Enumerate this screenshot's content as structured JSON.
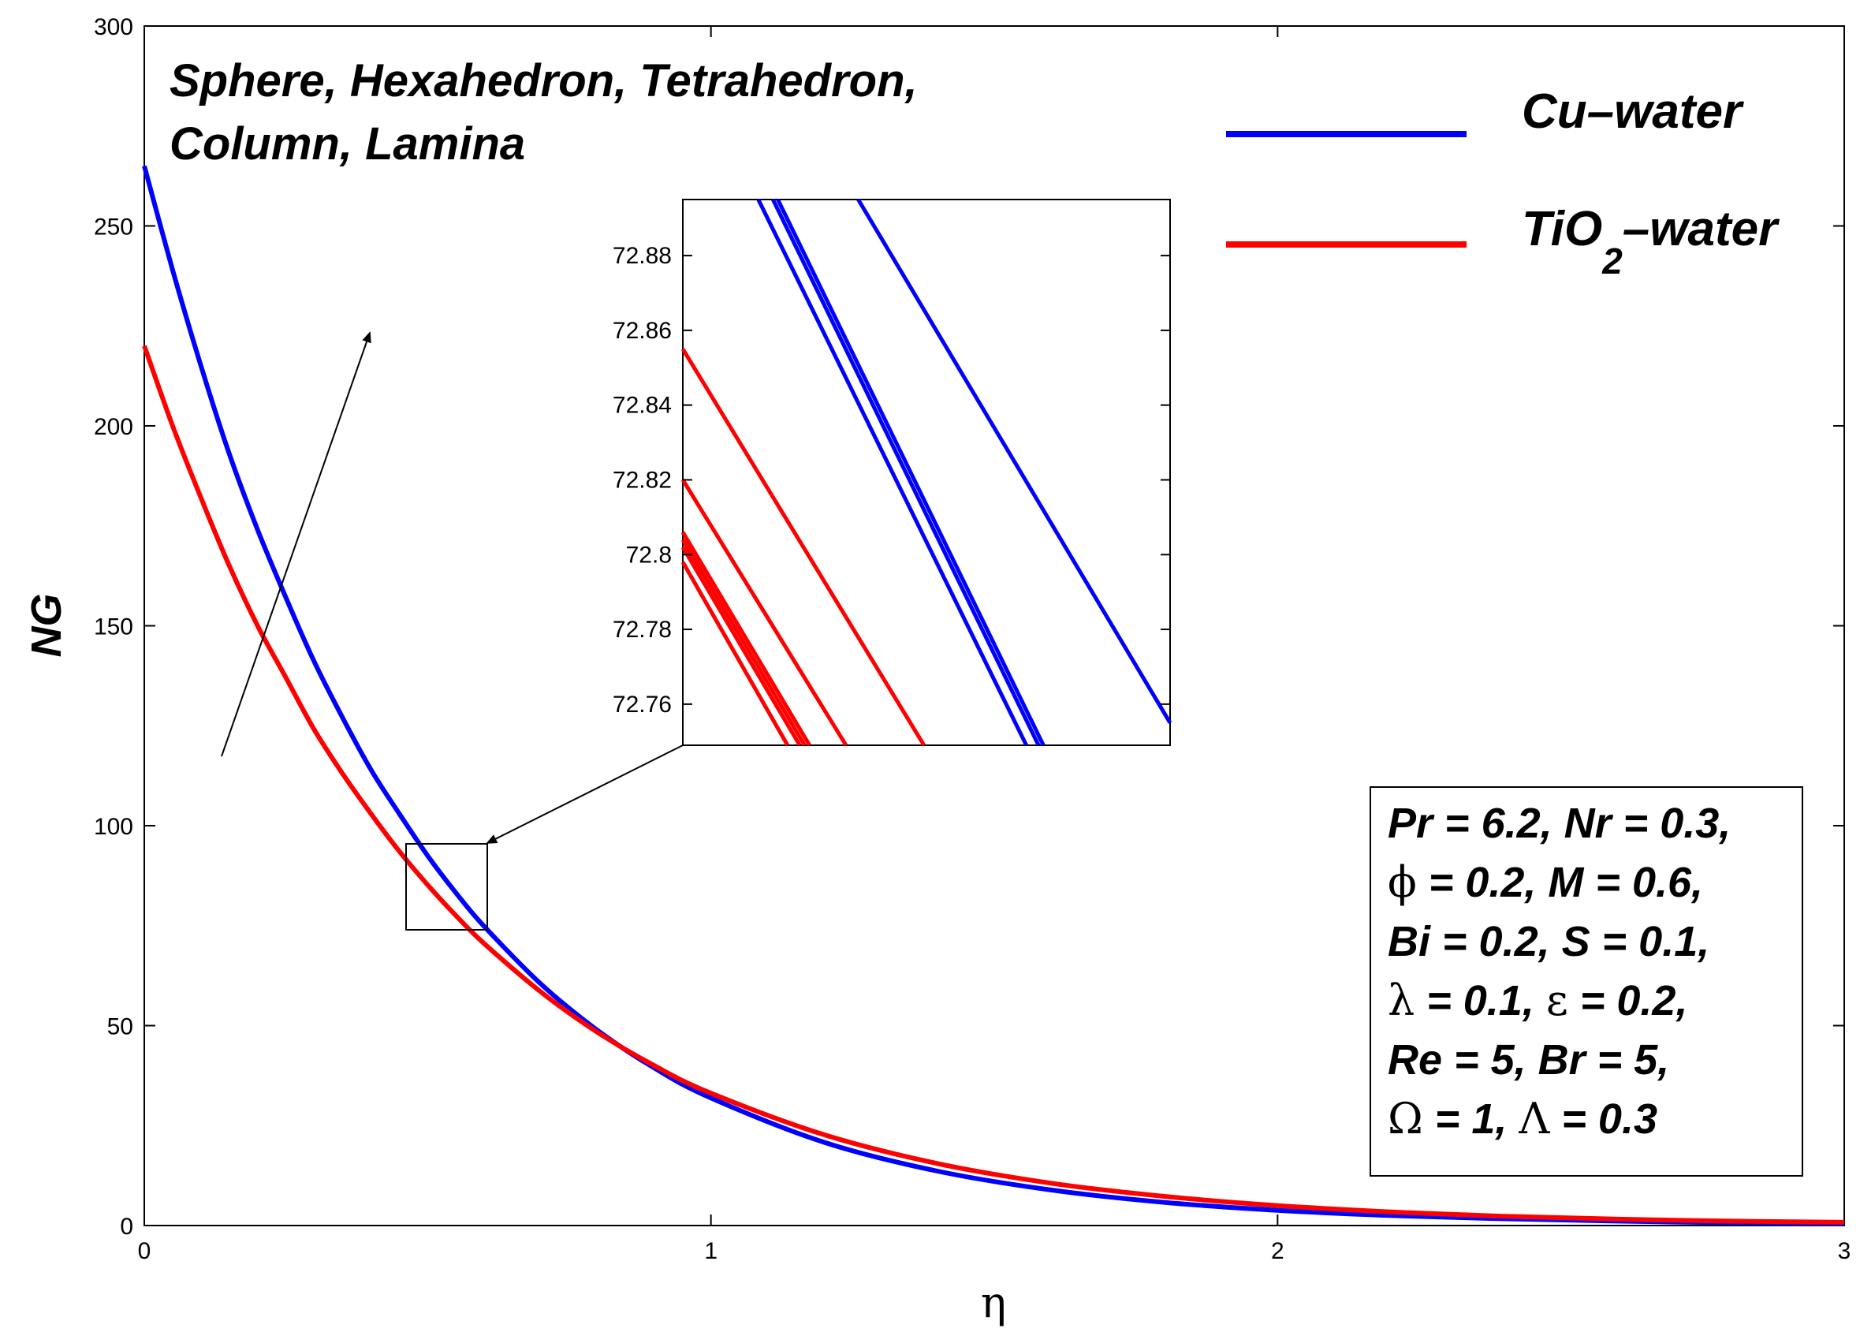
{
  "chart_data": {
    "type": "line",
    "title": "",
    "xlabel": "η",
    "ylabel": "NG",
    "xlim": [
      0,
      3
    ],
    "ylim": [
      0,
      300
    ],
    "xticks": [
      0,
      1,
      2,
      3
    ],
    "yticks": [
      0,
      50,
      100,
      150,
      200,
      250,
      300
    ],
    "grid": false,
    "legend_position": "top-right",
    "series": [
      {
        "name": "Cu–water",
        "color": "#0000ff",
        "x": [
          0,
          0.05,
          0.1,
          0.15,
          0.2,
          0.25,
          0.3,
          0.35,
          0.4,
          0.45,
          0.5,
          0.55,
          0.6,
          0.7,
          0.8,
          0.9,
          1.0,
          1.2,
          1.4,
          1.6,
          1.8,
          2.0,
          2.2,
          2.4,
          2.6,
          2.8,
          3.0
        ],
        "values": [
          265,
          239,
          215,
          193,
          174,
          157,
          141,
          127,
          114,
          103,
          92.5,
          83.2,
          74.8,
          60.4,
          48.8,
          39.4,
          31.9,
          20.8,
          13.6,
          8.9,
          5.8,
          3.8,
          2.5,
          1.7,
          1.1,
          0.7,
          0.5
        ]
      },
      {
        "name": "TiO2–water",
        "color": "#ff0000",
        "x": [
          0,
          0.05,
          0.1,
          0.15,
          0.2,
          0.25,
          0.3,
          0.35,
          0.4,
          0.45,
          0.5,
          0.55,
          0.6,
          0.7,
          0.8,
          0.9,
          1.0,
          1.2,
          1.4,
          1.6,
          1.8,
          2.0,
          2.2,
          2.4,
          2.6,
          2.8,
          3.0
        ],
        "values": [
          220,
          200,
          182,
          165,
          150,
          137,
          124,
          113,
          103,
          93.6,
          85.2,
          77.5,
          70.5,
          58.4,
          48.3,
          40.0,
          33.1,
          22.7,
          15.5,
          10.6,
          7.3,
          5.0,
          3.4,
          2.3,
          1.6,
          1.1,
          0.8
        ]
      }
    ],
    "zoom_box": {
      "xlim": [
        0.46,
        0.6
      ],
      "ylim": [
        74,
        95
      ]
    },
    "inset": {
      "yticks": [
        "72.76",
        "72.78",
        "72.8",
        "72.82",
        "72.84",
        "72.86",
        "72.88"
      ],
      "ylim": [
        72.749,
        72.895
      ],
      "xlim": [
        0,
        1
      ],
      "blue_lines": [
        {
          "start": [
            0.155,
            72.895
          ],
          "end": [
            0.705,
            72.749
          ]
        },
        {
          "start": [
            0.185,
            72.895
          ],
          "end": [
            0.73,
            72.749
          ]
        },
        {
          "start": [
            0.195,
            72.895
          ],
          "end": [
            0.74,
            72.749
          ]
        },
        {
          "start": [
            0.36,
            72.895
          ],
          "end": [
            1.0,
            72.755
          ]
        }
      ],
      "red_lines": [
        {
          "start": [
            0.0,
            72.855
          ],
          "end": [
            0.495,
            72.749
          ]
        },
        {
          "start": [
            0.0,
            72.82
          ],
          "end": [
            0.335,
            72.749
          ]
        },
        {
          "start": [
            0.0,
            72.806
          ],
          "end": [
            0.26,
            72.749
          ]
        },
        {
          "start": [
            0.0,
            72.804
          ],
          "end": [
            0.25,
            72.749
          ]
        },
        {
          "start": [
            0.0,
            72.802
          ],
          "end": [
            0.24,
            72.749
          ]
        },
        {
          "start": [
            0.0,
            72.798
          ],
          "end": [
            0.215,
            72.749
          ]
        }
      ]
    },
    "annotations": {
      "shapes_line1": "Sphere, Hexahedron, Tetrahedron,",
      "shapes_line2": "Column, Lamina",
      "arrow_from": [
        0.14,
        117
      ],
      "arrow_to": [
        0.4,
        223
      ]
    }
  },
  "legend": {
    "items": [
      {
        "label": "Cu–water",
        "color": "#0000ff"
      },
      {
        "label_main": "TiO",
        "label_sub": "2",
        "label_tail": "–water",
        "color": "#ff0000"
      }
    ]
  },
  "params": {
    "lines": [
      "Pr = 6.2, Nr = 0.3,",
      [
        {
          "g": "ϕ"
        },
        {
          "t": " = 0.2, M = 0.6,"
        }
      ],
      "Bi = 0.2, S = 0.1,",
      [
        {
          "g": "λ"
        },
        {
          "t": " = 0.1, "
        },
        {
          "g": "ε"
        },
        {
          "t": " = 0.2,"
        }
      ],
      "Re = 5, Br = 5,",
      [
        {
          "g": "Ω"
        },
        {
          "t": " = 1, "
        },
        {
          "g": "Λ"
        },
        {
          "t": " = 0.3"
        }
      ]
    ]
  }
}
